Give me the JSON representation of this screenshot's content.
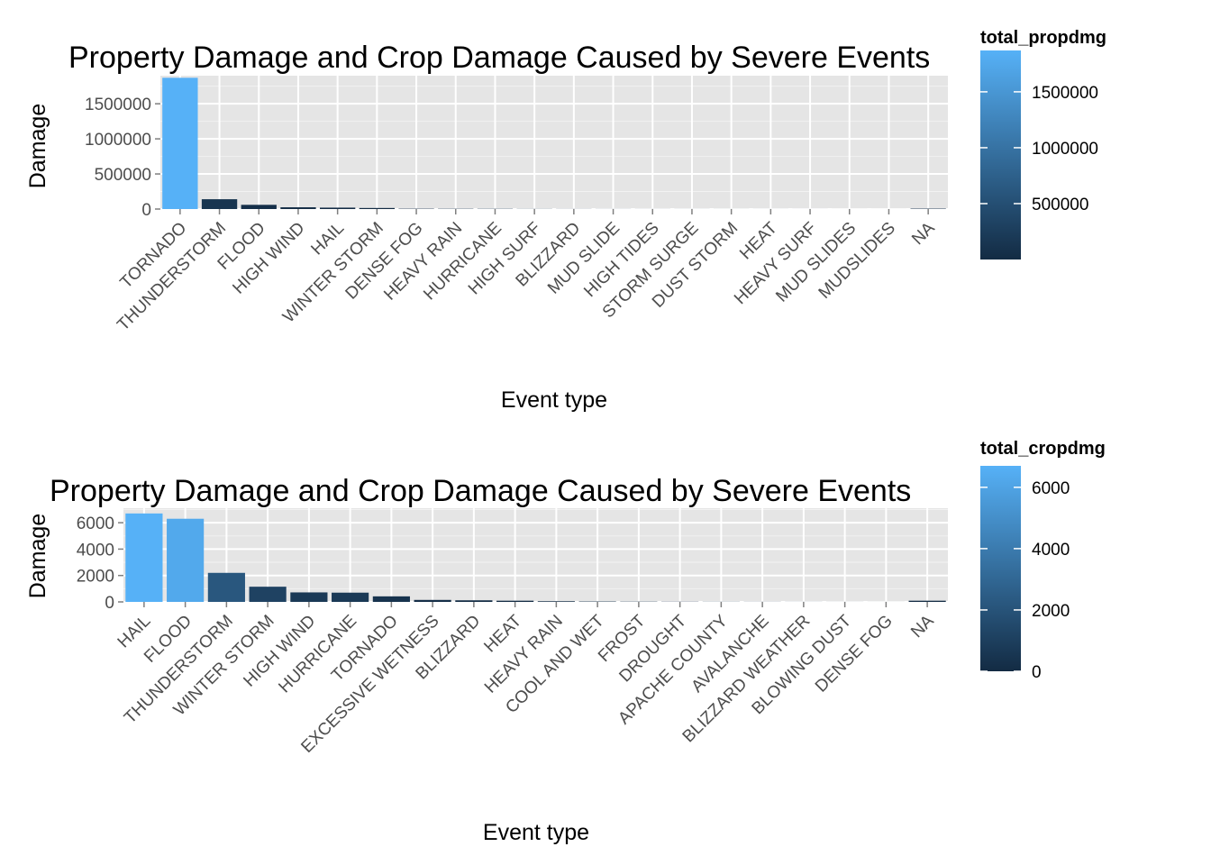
{
  "colors": {
    "panel_bg": "#e5e5e5",
    "grid": "#ffffff",
    "low": "#132b43",
    "high": "#56b1f7",
    "tick_text": "#4d4d4d"
  },
  "chart_data": [
    {
      "type": "bar",
      "title": "Property Damage and Crop Damage Caused by Severe Events",
      "xlabel": "Event type",
      "ylabel": "Damage",
      "legend_title": "total_propdmg",
      "legend_position": "right",
      "grid": true,
      "ylim": [
        0,
        1900000
      ],
      "yticks": [
        0,
        500000,
        1000000,
        1500000
      ],
      "ytick_labels": [
        "0",
        "500000",
        "1000000",
        "1500000"
      ],
      "color_scale": {
        "domain": [
          0,
          1870000
        ],
        "ticks": [
          500000,
          1000000,
          1500000
        ],
        "tick_labels": [
          "500000",
          "1000000",
          "1500000"
        ]
      },
      "categories": [
        "TORNADO",
        "THUNDERSTORM",
        "FLOOD",
        "HIGH WIND",
        "HAIL",
        "WINTER STORM",
        "DENSE FOG",
        "HEAVY RAIN",
        "HURRICANE",
        "HIGH SURF",
        "BLIZZARD",
        "MUD SLIDE",
        "HIGH TIDES",
        "STORM SURGE",
        "DUST STORM",
        "HEAT",
        "HEAVY SURF",
        "MUD SLIDES",
        "MUDSLIDES",
        "NA"
      ],
      "values": [
        1870000,
        140000,
        60000,
        25000,
        20000,
        15000,
        5000,
        4000,
        3500,
        2000,
        1500,
        1000,
        800,
        700,
        600,
        500,
        400,
        300,
        200,
        6000
      ]
    },
    {
      "type": "bar",
      "title": "Property Damage and Crop Damage Caused by Severe Events",
      "xlabel": "Event type",
      "ylabel": "Damage",
      "legend_title": "total_cropdmg",
      "legend_position": "right",
      "grid": true,
      "ylim": [
        0,
        7100
      ],
      "yticks": [
        0,
        2000,
        4000,
        6000
      ],
      "ytick_labels": [
        "0",
        "2000",
        "4000",
        "6000"
      ],
      "color_scale": {
        "domain": [
          0,
          6700
        ],
        "ticks": [
          0,
          2000,
          4000,
          6000
        ],
        "tick_labels": [
          "0",
          "2000",
          "4000",
          "6000"
        ]
      },
      "categories": [
        "HAIL",
        "FLOOD",
        "THUNDERSTORM",
        "WINTER STORM",
        "HIGH WIND",
        "HURRICANE",
        "TORNADO",
        "EXCESSIVE WETNESS",
        "BLIZZARD",
        "HEAT",
        "HEAVY RAIN",
        "COOL AND WET",
        "FROST",
        "DROUGHT",
        "APACHE COUNTY",
        "AVALANCHE",
        "BLIZZARD WEATHER",
        "BLOWING DUST",
        "DENSE FOG",
        "NA"
      ],
      "values": [
        6700,
        6300,
        2200,
        1150,
        720,
        700,
        420,
        150,
        120,
        90,
        50,
        30,
        20,
        15,
        10,
        8,
        5,
        4,
        3,
        90
      ]
    }
  ]
}
